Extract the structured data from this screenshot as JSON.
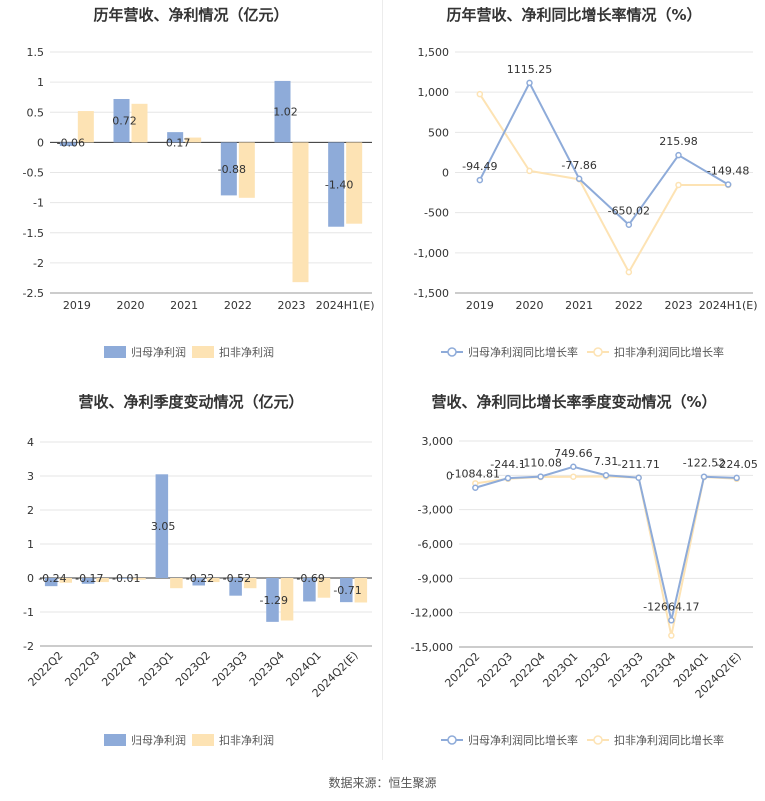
{
  "colors": {
    "primary": "#8eabd9",
    "secondary": "#fde3b4",
    "axis": "#999999",
    "grid": "#e6e6e6",
    "label": "#333333",
    "title": "#333333"
  },
  "footer": {
    "source": "数据来源：恒生聚源"
  },
  "chart_data": [
    {
      "type": "bar",
      "title": "历年营收、净利情况（亿元）",
      "categories": [
        "2019",
        "2020",
        "2021",
        "2022",
        "2023",
        "2024H1(E)"
      ],
      "ylim": [
        -2.5,
        1.5
      ],
      "yticks": [
        1.5,
        1,
        0.5,
        0,
        -0.5,
        -1,
        -1.5,
        -2,
        -2.5
      ],
      "ytick_labels": [
        "1.5",
        "1",
        "0.5",
        "0",
        "-0.5",
        "-1",
        "-1.5",
        "-2",
        "-2.5"
      ],
      "legend_position": "bottom",
      "series": [
        {
          "name": "归母净利润",
          "values": [
            -0.06,
            0.72,
            0.17,
            -0.88,
            1.02,
            -1.4
          ],
          "labels": [
            "-0.06",
            "0.72",
            "0.17",
            "-0.88",
            "1.02",
            "-1.40"
          ]
        },
        {
          "name": "扣非净利润",
          "values": [
            0.52,
            0.64,
            0.08,
            -0.92,
            -2.32,
            -1.35
          ]
        }
      ]
    },
    {
      "type": "line",
      "title": "历年营收、净利同比增长率情况（%）",
      "categories": [
        "2019",
        "2020",
        "2021",
        "2022",
        "2023",
        "2024H1(E)"
      ],
      "ylim": [
        -1500,
        1500
      ],
      "yticks": [
        1500,
        1000,
        500,
        0,
        -500,
        -1000,
        -1500
      ],
      "ytick_labels": [
        "1,500",
        "1,000",
        "500",
        "0",
        "-500",
        "-1,000",
        "-1,500"
      ],
      "legend_position": "bottom",
      "series": [
        {
          "name": "归母净利润同比增长率",
          "values": [
            -94.49,
            1115.25,
            -77.86,
            -650.02,
            215.98,
            -149.48
          ],
          "labels": [
            "-94.49",
            "1115.25",
            "-77.86",
            "-650.02",
            "215.98",
            "-149.48"
          ]
        },
        {
          "name": "扣非净利润同比增长率",
          "values": [
            975,
            20,
            -85,
            -1240,
            -155,
            -155
          ]
        }
      ]
    },
    {
      "type": "bar",
      "title": "营收、净利季度变动情况（亿元）",
      "categories": [
        "2022Q2",
        "2022Q3",
        "2022Q4",
        "2023Q1",
        "2023Q2",
        "2023Q3",
        "2023Q4",
        "2024Q1",
        "2024Q2(E)"
      ],
      "ylim": [
        -2,
        4
      ],
      "yticks": [
        4,
        3,
        2,
        1,
        0,
        -1,
        -2
      ],
      "ytick_labels": [
        "4",
        "3",
        "2",
        "1",
        "0",
        "-1",
        "-2"
      ],
      "legend_position": "bottom",
      "series": [
        {
          "name": "归母净利润",
          "values": [
            -0.24,
            -0.17,
            -0.01,
            3.05,
            -0.22,
            -0.52,
            -1.29,
            -0.69,
            -0.71
          ],
          "labels": [
            "-0.24",
            "-0.17",
            "-0.01",
            "3.05",
            "-0.22",
            "-0.52",
            "-1.29",
            "-0.69",
            "-0.71"
          ]
        },
        {
          "name": "扣非净利润",
          "values": [
            -0.14,
            -0.12,
            -0.05,
            -0.3,
            -0.12,
            -0.3,
            -1.25,
            -0.58,
            -0.72
          ]
        }
      ]
    },
    {
      "type": "line",
      "title": "营收、净利同比增长率季度变动情况（%）",
      "categories": [
        "2022Q2",
        "2022Q3",
        "2022Q4",
        "2023Q1",
        "2023Q2",
        "2023Q3",
        "2023Q4",
        "2024Q1",
        "2024Q2(E)"
      ],
      "ylim": [
        -15000,
        3000
      ],
      "yticks": [
        3000,
        0,
        -3000,
        -6000,
        -9000,
        -12000,
        -15000
      ],
      "ytick_labels": [
        "3,000",
        "0",
        "-3,000",
        "-6,000",
        "-9,000",
        "-12,000",
        "-15,000"
      ],
      "legend_position": "bottom",
      "series": [
        {
          "name": "归母净利润同比增长率",
          "values": [
            -1084.81,
            -244.1,
            -110.08,
            749.66,
            7.31,
            -211.71,
            -12664.17,
            -122.52,
            -224.05
          ],
          "labels": [
            "-1084.81",
            "-244.1",
            "-110.08",
            "749.66",
            "7.31",
            "-211.71",
            "-12664.17",
            "-122.52",
            "-224.05"
          ]
        },
        {
          "name": "扣非净利润同比增长率",
          "values": [
            -700,
            -300,
            -150,
            -120,
            -100,
            -200,
            -14000,
            -150,
            -300
          ]
        }
      ]
    }
  ]
}
